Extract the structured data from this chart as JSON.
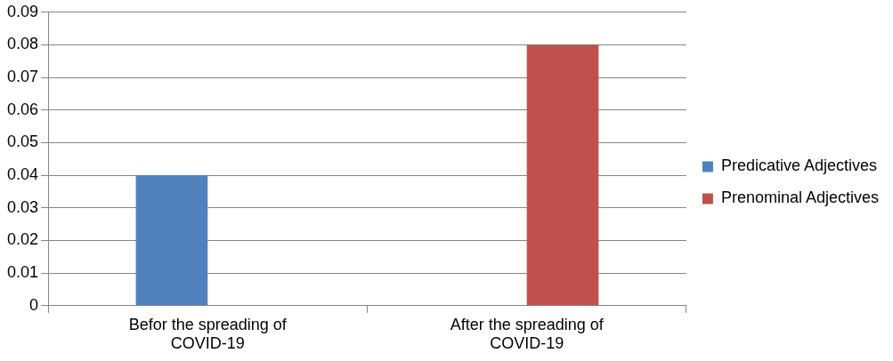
{
  "chart_data": {
    "type": "bar",
    "categories": [
      "Befor the spreading of COVID-19",
      "After the spreading of COVID-19"
    ],
    "series": [
      {
        "name": "Predicative Adjectives",
        "color": "#4f81bd",
        "values": [
          0.04,
          null
        ]
      },
      {
        "name": "Prenominal Adjectives",
        "color": "#c0504d",
        "values": [
          null,
          0.08
        ]
      }
    ],
    "ylim": [
      0,
      0.09
    ],
    "yticks": [
      0,
      0.01,
      0.02,
      0.03,
      0.04,
      0.05,
      0.06,
      0.07,
      0.08,
      0.09
    ],
    "grid": "y",
    "legend": "right"
  }
}
